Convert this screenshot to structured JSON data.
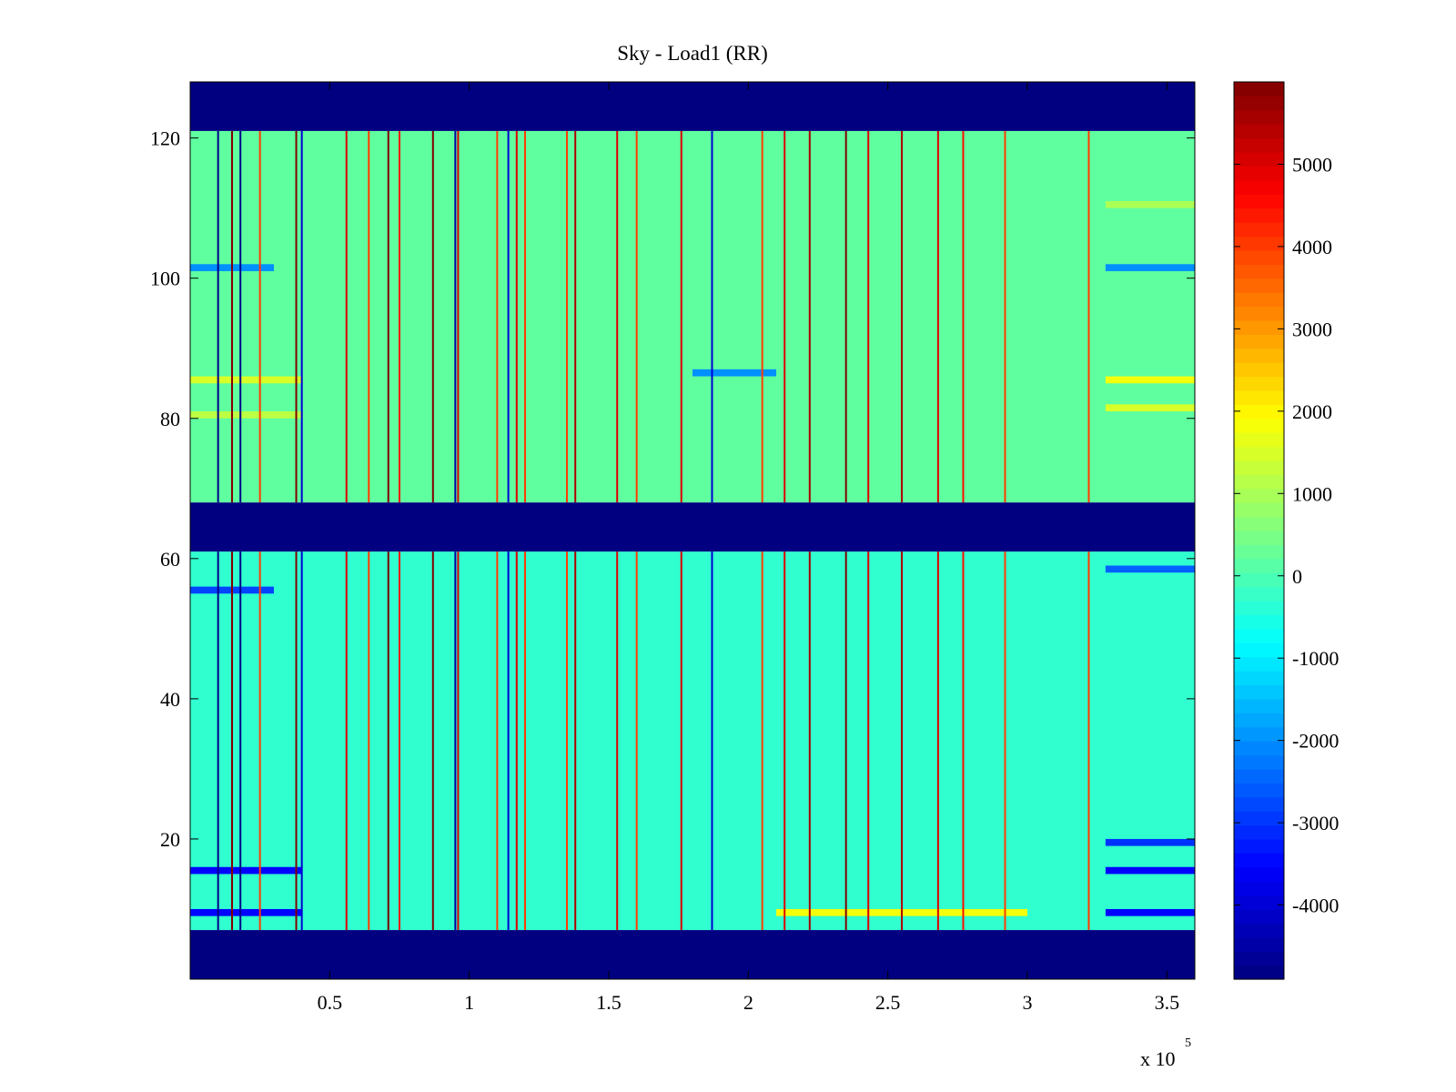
{
  "chart_data": {
    "type": "heatmap",
    "title": "Sky - Load1 (RR)",
    "xlabel": "",
    "ylabel": "",
    "x_multiplier_label": "x 10",
    "x_multiplier_exponent": "5",
    "xlim": [
      0,
      360000
    ],
    "ylim": [
      0,
      128
    ],
    "x_ticks": [
      {
        "value": 50000,
        "label": "0.5"
      },
      {
        "value": 100000,
        "label": "1"
      },
      {
        "value": 150000,
        "label": "1.5"
      },
      {
        "value": 200000,
        "label": "2"
      },
      {
        "value": 250000,
        "label": "2.5"
      },
      {
        "value": 300000,
        "label": "3"
      },
      {
        "value": 350000,
        "label": "3.5"
      }
    ],
    "y_ticks": [
      {
        "value": 20,
        "label": "20"
      },
      {
        "value": 40,
        "label": "40"
      },
      {
        "value": 60,
        "label": "60"
      },
      {
        "value": 80,
        "label": "80"
      },
      {
        "value": 100,
        "label": "100"
      },
      {
        "value": 120,
        "label": "120"
      }
    ],
    "colorbar": {
      "colormap": "jet",
      "clim": [
        -4900,
        6000
      ],
      "ticks": [
        {
          "value": 5000,
          "label": "5000"
        },
        {
          "value": 4000,
          "label": "4000"
        },
        {
          "value": 3000,
          "label": "3000"
        },
        {
          "value": 2000,
          "label": "2000"
        },
        {
          "value": 1000,
          "label": "1000"
        },
        {
          "value": 0,
          "label": "0"
        },
        {
          "value": -1000,
          "label": "-1000"
        },
        {
          "value": -2000,
          "label": "-2000"
        },
        {
          "value": -3000,
          "label": "-3000"
        },
        {
          "value": -4000,
          "label": "-4000"
        }
      ]
    },
    "masked_row_bands": [
      {
        "y_range": [
          0,
          7
        ],
        "value": -4900
      },
      {
        "y_range": [
          61,
          68
        ],
        "value": -4900
      },
      {
        "y_range": [
          121,
          128
        ],
        "value": -4900
      }
    ],
    "data_row_bands": [
      {
        "y_range": [
          7,
          61
        ],
        "typical_range": [
          -2000,
          2000
        ],
        "mean": -300
      },
      {
        "y_range": [
          68,
          121
        ],
        "typical_range": [
          -1500,
          2000
        ],
        "mean": 200
      }
    ],
    "row_features": [
      {
        "y": 9,
        "x_range": [
          0,
          40000
        ],
        "value": -3500
      },
      {
        "y": 9,
        "x_range": [
          328000,
          360000
        ],
        "value": -3500
      },
      {
        "y": 9,
        "x_range": [
          210000,
          300000
        ],
        "value": 1800
      },
      {
        "y": 15,
        "x_range": [
          0,
          40000
        ],
        "value": -3500
      },
      {
        "y": 15,
        "x_range": [
          328000,
          360000
        ],
        "value": -3500
      },
      {
        "y": 19,
        "x_range": [
          328000,
          360000
        ],
        "value": -3000
      },
      {
        "y": 55,
        "x_range": [
          0,
          30000
        ],
        "value": -2800
      },
      {
        "y": 58,
        "x_range": [
          328000,
          360000
        ],
        "value": -2500
      },
      {
        "y": 80,
        "x_range": [
          0,
          40000
        ],
        "value": 1200
      },
      {
        "y": 81,
        "x_range": [
          328000,
          360000
        ],
        "value": 1500
      },
      {
        "y": 85,
        "x_range": [
          0,
          40000
        ],
        "value": 1500
      },
      {
        "y": 85,
        "x_range": [
          328000,
          360000
        ],
        "value": 1800
      },
      {
        "y": 86,
        "x_range": [
          180000,
          210000
        ],
        "value": -2000
      },
      {
        "y": 101,
        "x_range": [
          0,
          30000
        ],
        "value": -2000
      },
      {
        "y": 101,
        "x_range": [
          328000,
          360000
        ],
        "value": -2000
      },
      {
        "y": 110,
        "x_range": [
          328000,
          360000
        ],
        "value": 1000
      }
    ],
    "column_features": [
      {
        "x": 10000,
        "value": -4800
      },
      {
        "x": 15000,
        "value": 6000
      },
      {
        "x": 18000,
        "value": -4800
      },
      {
        "x": 25000,
        "value": 4000
      },
      {
        "x": 38000,
        "value": 6000
      },
      {
        "x": 40000,
        "value": -4000
      },
      {
        "x": 56000,
        "value": 5000
      },
      {
        "x": 64000,
        "value": 4000
      },
      {
        "x": 71000,
        "value": 6000
      },
      {
        "x": 75000,
        "value": 4500
      },
      {
        "x": 87000,
        "value": 6000
      },
      {
        "x": 95000,
        "value": -4500
      },
      {
        "x": 96000,
        "value": 5000
      },
      {
        "x": 110000,
        "value": 4000
      },
      {
        "x": 114000,
        "value": -4000
      },
      {
        "x": 117000,
        "value": 5000
      },
      {
        "x": 120000,
        "value": 4000
      },
      {
        "x": 135000,
        "value": 4000
      },
      {
        "x": 138000,
        "value": 5500
      },
      {
        "x": 153000,
        "value": 5000
      },
      {
        "x": 160000,
        "value": 4000
      },
      {
        "x": 176000,
        "value": 5000
      },
      {
        "x": 187000,
        "value": -4000
      },
      {
        "x": 205000,
        "value": 4000
      },
      {
        "x": 213000,
        "value": 5000
      },
      {
        "x": 222000,
        "value": 5500
      },
      {
        "x": 235000,
        "value": 6000
      },
      {
        "x": 243000,
        "value": 5000
      },
      {
        "x": 255000,
        "value": 5500
      },
      {
        "x": 268000,
        "value": 5000
      },
      {
        "x": 277000,
        "value": 4500
      },
      {
        "x": 292000,
        "value": 4000
      },
      {
        "x": 322000,
        "value": 4000
      }
    ]
  }
}
